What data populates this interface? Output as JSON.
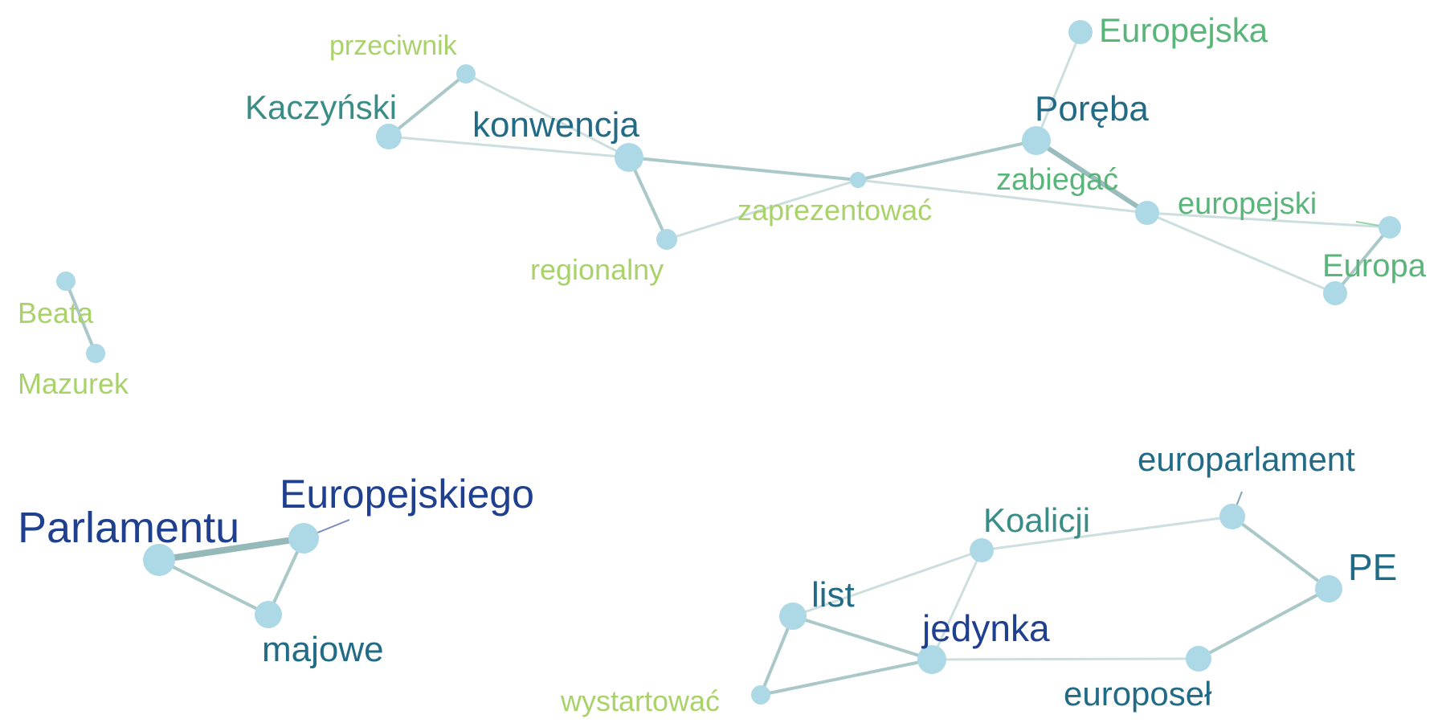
{
  "graph": {
    "nodes": [
      {
        "id": "przeciwnik",
        "label": "przeciwnik",
        "color": "#a9d36a",
        "weight": 1
      },
      {
        "id": "Europejska",
        "label": "Europejska",
        "color": "#5ab57a",
        "weight": 2
      },
      {
        "id": "Kaczynski",
        "label": "Kaczyński",
        "color": "#3a8c86",
        "weight": 2
      },
      {
        "id": "konwencja",
        "label": "konwencja",
        "color": "#226b86",
        "weight": 3
      },
      {
        "id": "Poreba",
        "label": "Poręba",
        "color": "#226b86",
        "weight": 3
      },
      {
        "id": "zaprezentowac",
        "label": "zaprezentować",
        "color": "#a9d36a",
        "weight": 1
      },
      {
        "id": "zabiegac",
        "label": "zabiegać",
        "color": "#5ab57a",
        "weight": 2
      },
      {
        "id": "europejski",
        "label": "europejski",
        "color": "#5ab57a",
        "weight": 2
      },
      {
        "id": "regionalny",
        "label": "regionalny",
        "color": "#a9d36a",
        "weight": 1
      },
      {
        "id": "Europa",
        "label": "Europa",
        "color": "#5ab57a",
        "weight": 2
      },
      {
        "id": "Beata",
        "label": "Beata",
        "color": "#a9d36a",
        "weight": 1
      },
      {
        "id": "Mazurek",
        "label": "Mazurek",
        "color": "#a9d36a",
        "weight": 1
      },
      {
        "id": "Parlamentu",
        "label": "Parlamentu",
        "color": "#1f3f8f",
        "weight": 5
      },
      {
        "id": "Europejskiego",
        "label": "Europejskiego",
        "color": "#1f3f8f",
        "weight": 4
      },
      {
        "id": "majowe",
        "label": "majowe",
        "color": "#226b86",
        "weight": 3
      },
      {
        "id": "europarlament",
        "label": "europarlament",
        "color": "#226b86",
        "weight": 3
      },
      {
        "id": "Koalicji",
        "label": "Koalicji",
        "color": "#3a8c86",
        "weight": 2
      },
      {
        "id": "PE",
        "label": "PE",
        "color": "#226b86",
        "weight": 3
      },
      {
        "id": "list",
        "label": "list",
        "color": "#226b86",
        "weight": 3
      },
      {
        "id": "jedynka",
        "label": "jedynka",
        "color": "#1f3f8f",
        "weight": 4
      },
      {
        "id": "europosel",
        "label": "europoseł",
        "color": "#226b86",
        "weight": 3
      },
      {
        "id": "wystartowac",
        "label": "wystartować",
        "color": "#a9d36a",
        "weight": 1
      }
    ],
    "edges": [
      {
        "source": "Kaczynski",
        "target": "przeciwnik",
        "strength": 2
      },
      {
        "source": "przeciwnik",
        "target": "konwencja",
        "strength": 1
      },
      {
        "source": "Kaczynski",
        "target": "konwencja",
        "strength": 1
      },
      {
        "source": "konwencja",
        "target": "zaprezentowac",
        "strength": 2
      },
      {
        "source": "konwencja",
        "target": "regionalny",
        "strength": 2
      },
      {
        "source": "regionalny",
        "target": "zaprezentowac",
        "strength": 1
      },
      {
        "source": "zaprezentowac",
        "target": "Poreba",
        "strength": 2
      },
      {
        "source": "zaprezentowac",
        "target": "zabiegac",
        "strength": 1
      },
      {
        "source": "Poreba",
        "target": "zabiegac",
        "strength": 3
      },
      {
        "source": "Poreba",
        "target": "Europejska",
        "strength": 1
      },
      {
        "source": "zabiegac",
        "target": "europejski",
        "strength": 1
      },
      {
        "source": "zabiegac",
        "target": "Europa",
        "strength": 1
      },
      {
        "source": "europejski",
        "target": "Europa",
        "strength": 2
      },
      {
        "source": "Beata",
        "target": "Mazurek",
        "strength": 2
      },
      {
        "source": "Parlamentu",
        "target": "Europejskiego",
        "strength": 4
      },
      {
        "source": "Parlamentu",
        "target": "majowe",
        "strength": 2
      },
      {
        "source": "Europejskiego",
        "target": "majowe",
        "strength": 2
      },
      {
        "source": "list",
        "target": "Koalicji",
        "strength": 1
      },
      {
        "source": "Koalicji",
        "target": "europarlament",
        "strength": 1
      },
      {
        "source": "Koalicji",
        "target": "jedynka",
        "strength": 1
      },
      {
        "source": "europarlament",
        "target": "PE",
        "strength": 2
      },
      {
        "source": "PE",
        "target": "europosel",
        "strength": 2
      },
      {
        "source": "europosel",
        "target": "jedynka",
        "strength": 1
      },
      {
        "source": "list",
        "target": "jedynka",
        "strength": 2
      },
      {
        "source": "list",
        "target": "wystartowac",
        "strength": 2
      },
      {
        "source": "jedynka",
        "target": "wystartowac",
        "strength": 2
      }
    ],
    "colors": {
      "node_fill": "#add8e6",
      "edge_color": "#8fb5b5",
      "background": "#ffffff"
    }
  }
}
